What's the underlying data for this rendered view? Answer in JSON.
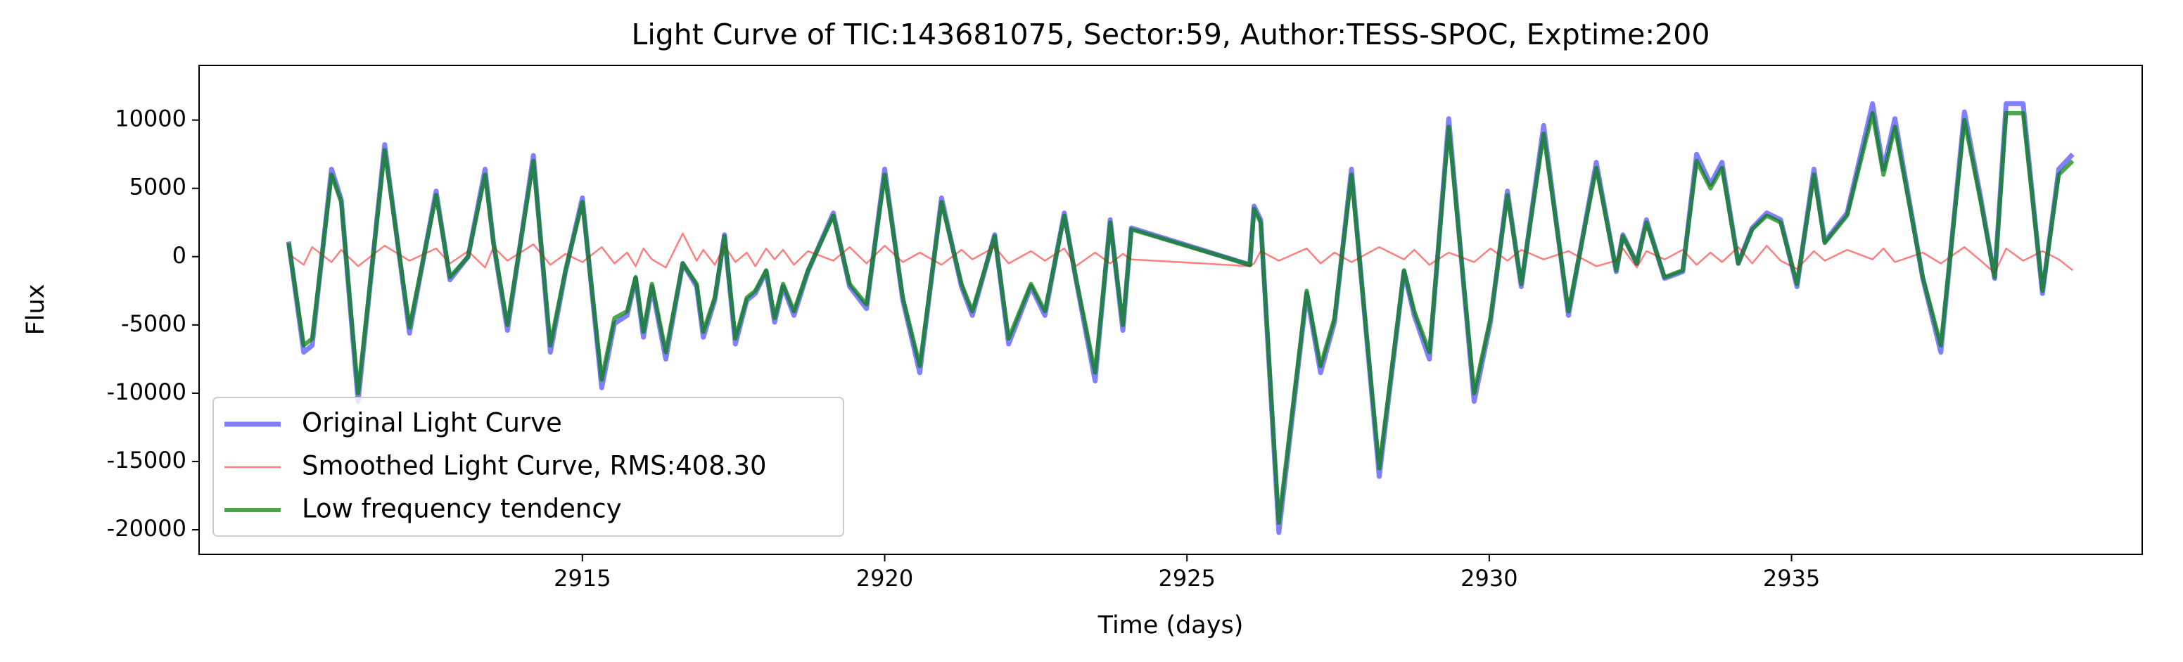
{
  "chart_data": {
    "type": "line",
    "title": "Light Curve of TIC:143681075, Sector:59, Author:TESS-SPOC, Exptime:200",
    "x_label": "Time (days)",
    "y_label": "Flux",
    "x": [
      2910.14,
      2910.39,
      2910.53,
      2910.85,
      2911.01,
      2911.29,
      2911.73,
      2912.14,
      2912.58,
      2912.81,
      2913.11,
      2913.39,
      2913.53,
      2913.76,
      2914.19,
      2914.47,
      2914.72,
      2915.0,
      2915.32,
      2915.53,
      2915.74,
      2915.88,
      2916.01,
      2916.15,
      2916.38,
      2916.66,
      2916.89,
      2917.0,
      2917.19,
      2917.35,
      2917.53,
      2917.72,
      2917.86,
      2918.04,
      2918.18,
      2918.32,
      2918.5,
      2918.73,
      2919.15,
      2919.42,
      2919.7,
      2920.0,
      2920.3,
      2920.58,
      2920.94,
      2921.27,
      2921.45,
      2921.82,
      2922.05,
      2922.42,
      2922.65,
      2922.97,
      2923.16,
      2923.48,
      2923.73,
      2923.94,
      2924.08,
      2926.04,
      2926.11,
      2926.22,
      2926.52,
      2926.98,
      2927.21,
      2927.44,
      2927.72,
      2928.18,
      2928.59,
      2928.76,
      2929.01,
      2929.33,
      2929.75,
      2930.02,
      2930.3,
      2930.53,
      2930.9,
      2931.31,
      2931.77,
      2932.1,
      2932.21,
      2932.44,
      2932.6,
      2932.9,
      2933.2,
      2933.43,
      2933.66,
      2933.85,
      2934.12,
      2934.35,
      2934.59,
      2934.82,
      2935.09,
      2935.37,
      2935.55,
      2935.92,
      2936.34,
      2936.52,
      2936.71,
      2937.17,
      2937.47,
      2937.86,
      2938.13,
      2938.36,
      2938.55,
      2938.83,
      2939.15,
      2939.42,
      2939.65
    ],
    "series": [
      {
        "name": "Original Light Curve",
        "color": "#0000ff",
        "values": [
          1100,
          -7000,
          -6500,
          6400,
          4200,
          -10600,
          8200,
          -5600,
          4800,
          -1700,
          0,
          6400,
          1000,
          -5400,
          7400,
          -7000,
          -1100,
          4300,
          -9600,
          -4900,
          -4300,
          -1600,
          -5900,
          -2200,
          -7500,
          -500,
          -2200,
          -5900,
          -3200,
          1600,
          -6400,
          -3200,
          -2700,
          -1100,
          -4800,
          -2200,
          -4300,
          -1100,
          3200,
          -2200,
          -3800,
          6400,
          -3200,
          -8500,
          4300,
          -2200,
          -4300,
          1600,
          -6400,
          -2200,
          -4300,
          3200,
          -1600,
          -9100,
          2700,
          -5400,
          2100,
          -600,
          3700,
          2700,
          -20200,
          -2700,
          -8500,
          -4800,
          6400,
          -16100,
          -1100,
          -4300,
          -7500,
          10100,
          -10600,
          -4800,
          4800,
          -2200,
          9600,
          -4300,
          6900,
          -1100,
          1600,
          -500,
          2700,
          -1600,
          -1100,
          7500,
          5300,
          6900,
          -500,
          2100,
          3200,
          2700,
          -2200,
          6400,
          1100,
          3200,
          11200,
          6400,
          10100,
          -1600,
          -7000,
          10600,
          4300,
          -1600,
          11200,
          11200,
          -2700,
          6400,
          7500
        ]
      },
      {
        "name": "Smoothed Light Curve, RMS:408.30",
        "color": "#ff0000",
        "values": [
          200,
          -600,
          700,
          -400,
          500,
          -700,
          800,
          -300,
          600,
          -500,
          400,
          -800,
          700,
          -300,
          900,
          -600,
          200,
          -400,
          700,
          -500,
          300,
          -700,
          600,
          -200,
          -800,
          1700,
          -300,
          500,
          -600,
          800,
          -400,
          300,
          -700,
          600,
          -200,
          500,
          -600,
          400,
          -300,
          700,
          -500,
          800,
          -400,
          300,
          -600,
          500,
          -200,
          700,
          -500,
          400,
          -300,
          600,
          -700,
          300,
          -500,
          200,
          -200,
          -700,
          -500,
          400,
          -300,
          600,
          -500,
          300,
          -400,
          700,
          -200,
          500,
          -600,
          300,
          -400,
          600,
          -300,
          500,
          -200,
          400,
          -700,
          -300,
          600,
          -800,
          400,
          -200,
          500,
          -600,
          300,
          -400,
          700,
          -500,
          800,
          -300,
          -900,
          400,
          -300,
          500,
          -200,
          600,
          -400,
          300,
          -500,
          700,
          -300,
          -1200,
          600,
          -300,
          400,
          -200,
          -1000
        ]
      },
      {
        "name": "Low frequency tendency",
        "color": "#008000",
        "values": [
          1000,
          -6500,
          -6000,
          6000,
          4000,
          -10000,
          7800,
          -5200,
          4500,
          -1500,
          0,
          6000,
          1000,
          -5000,
          7000,
          -6500,
          -1000,
          4000,
          -9000,
          -4500,
          -4000,
          -1500,
          -5500,
          -2000,
          -7000,
          -500,
          -2000,
          -5500,
          -3000,
          1500,
          -6000,
          -3000,
          -2500,
          -1000,
          -4500,
          -2000,
          -4000,
          -1000,
          3000,
          -2000,
          -3500,
          6000,
          -3000,
          -8000,
          4000,
          -2000,
          -4000,
          1500,
          -6000,
          -2000,
          -4000,
          3000,
          -1500,
          -8500,
          2500,
          -5000,
          2000,
          -600,
          3500,
          2500,
          -19500,
          -2500,
          -8000,
          -4500,
          6000,
          -15500,
          -1000,
          -4000,
          -7000,
          9500,
          -10000,
          -4500,
          4500,
          -2000,
          9000,
          -4000,
          6500,
          -1000,
          1500,
          -500,
          2500,
          -1500,
          -1000,
          7000,
          5000,
          6500,
          -500,
          2000,
          3000,
          2500,
          -2000,
          6000,
          1000,
          3000,
          10500,
          6000,
          9500,
          -1500,
          -6500,
          10000,
          4000,
          -1500,
          10500,
          10500,
          -2500,
          6000,
          7000
        ]
      }
    ],
    "xlim": [
      2908.66,
      2940.8
    ],
    "xticks": [
      2915,
      2920,
      2925,
      2930,
      2935
    ],
    "ylim": [
      -21800,
      14000
    ],
    "yticks": [
      -20000,
      -15000,
      -10000,
      -5000,
      0,
      5000,
      10000
    ],
    "grid": false,
    "legend": "lower left"
  }
}
